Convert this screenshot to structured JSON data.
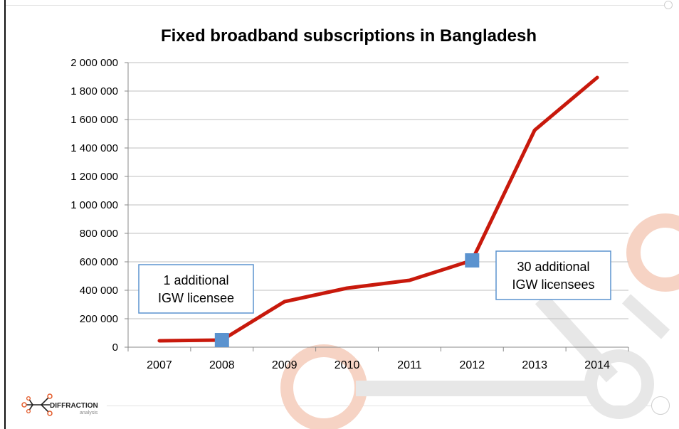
{
  "chart_data": {
    "type": "line",
    "title": "Fixed broadband subscriptions in Bangladesh",
    "xlabel": "",
    "ylabel": "",
    "categories": [
      "2007",
      "2008",
      "2009",
      "2010",
      "2011",
      "2012",
      "2013",
      "2014"
    ],
    "series": [
      {
        "values": [
          45000,
          50000,
          320000,
          415000,
          470000,
          610000,
          1525000,
          1895000
        ]
      }
    ],
    "ylim": [
      0,
      2000000
    ],
    "yticks": [
      0,
      200000,
      400000,
      600000,
      800000,
      1000000,
      1200000,
      1400000,
      1600000,
      1800000,
      2000000
    ],
    "ytick_labels": [
      "0",
      "200 000",
      "400 000",
      "600 000",
      "800 000",
      "1 000 000",
      "1 200 000",
      "1 400 000",
      "1 600 000",
      "1 800 000",
      "2 000 000"
    ],
    "grid": true,
    "legend": "none",
    "markers": [
      {
        "category": "2008",
        "value": 50000
      },
      {
        "category": "2012",
        "value": 610000
      }
    ],
    "annotations": [
      {
        "lines": [
          "1 additional",
          "IGW licensee"
        ],
        "category": "2008"
      },
      {
        "lines": [
          "30 additional",
          "IGW licensees"
        ],
        "category": "2012"
      }
    ]
  },
  "colors": {
    "line": "#c8190c",
    "marker": "#5b93cf",
    "annotation_border": "#5b93cf",
    "grid": "#bfbfbf",
    "watermark_orange": "#f6d3c4",
    "watermark_grey": "#e7e7e7"
  },
  "logo": {
    "name": "DIFFRACTION",
    "sub": "analysis",
    "icon": "diffraction-node-icon"
  }
}
